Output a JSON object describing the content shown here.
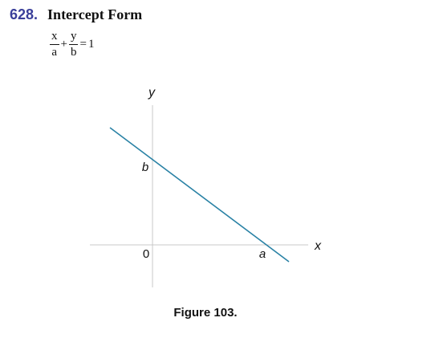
{
  "header": {
    "item_number": "628.",
    "title": "Intercept Form"
  },
  "formula": {
    "term1_numerator": "x",
    "term1_denominator": "a",
    "plus": "+",
    "term2_numerator": "y",
    "term2_denominator": "b",
    "equals": "=",
    "rhs": "1"
  },
  "figure": {
    "y_axis_label": "y",
    "x_axis_label": "x",
    "origin_label": "0",
    "y_intercept_label": "b",
    "x_intercept_label": "a",
    "caption": "Figure 103.",
    "colors": {
      "line": "#2a82a5",
      "axes": "#c8c8c8"
    }
  }
}
